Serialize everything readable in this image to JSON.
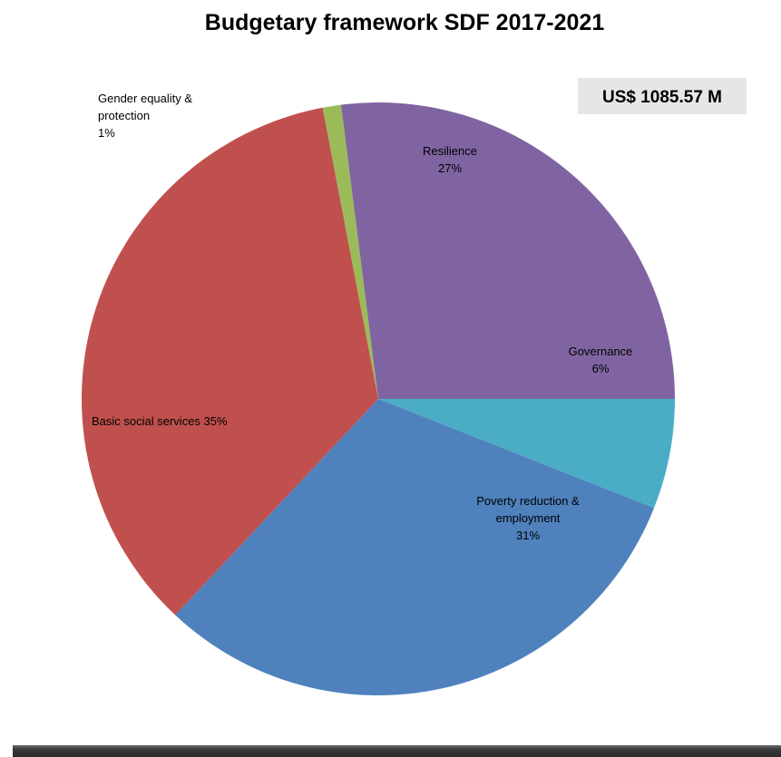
{
  "chart_data": {
    "type": "pie",
    "title": "Budgetary framework SDF 2017-2021",
    "total_label": "US$ 1085.57 M",
    "slices": [
      {
        "label_lines": [
          "Governance",
          "6%"
        ],
        "name": "Governance",
        "value": 6,
        "color": "#4bacc6"
      },
      {
        "label_lines": [
          "Poverty reduction &",
          "employment",
          "31%"
        ],
        "name": "Poverty reduction & employment",
        "value": 31,
        "color": "#4f81bd"
      },
      {
        "label_lines": [
          "Basic social services 35%"
        ],
        "name": "Basic social services",
        "value": 35,
        "color": "#c0504d"
      },
      {
        "label_lines": [
          "Gender equality &",
          "protection",
          "1%"
        ],
        "name": "Gender equality & protection",
        "value": 1,
        "color": "#9bbb59"
      },
      {
        "label_lines": [
          "Resilience",
          "27%"
        ],
        "name": "Resilience",
        "value": 27,
        "color": "#8064a2"
      }
    ],
    "legend": "none"
  },
  "colors": {
    "total_box_bg": "#e6e6e6",
    "bottom_bar": "#3a3a3a"
  }
}
